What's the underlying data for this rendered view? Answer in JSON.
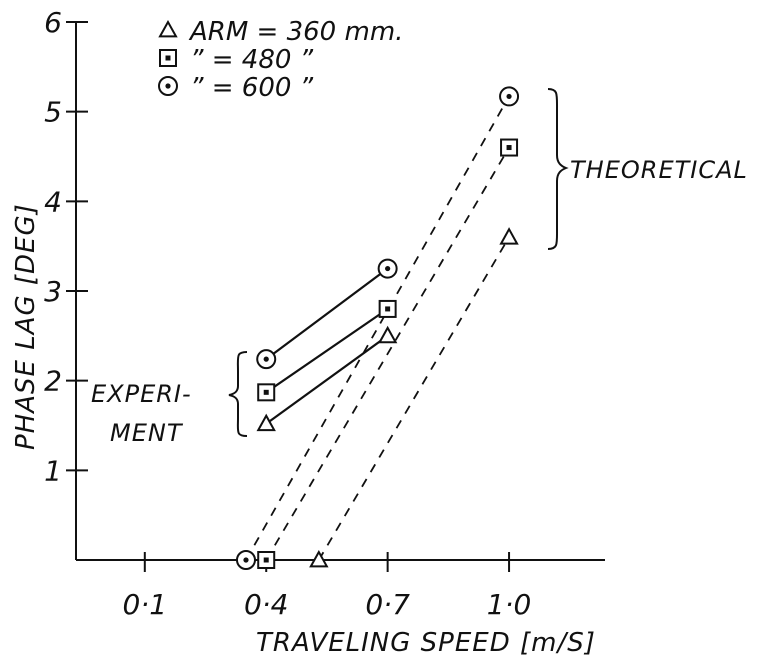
{
  "chart_data": {
    "type": "line",
    "xlabel": "TRAVELING SPEED [m/S]",
    "ylabel": "PHASE LAG [DEG]",
    "x_ticks": [
      {
        "value": 0.1,
        "label": "0·1"
      },
      {
        "value": 0.4,
        "label": "0·4"
      },
      {
        "value": 0.7,
        "label": "0·7"
      },
      {
        "value": 1.0,
        "label": "1·0"
      }
    ],
    "y_ticks": [
      {
        "value": 1,
        "label": "1"
      },
      {
        "value": 2,
        "label": "2"
      },
      {
        "value": 3,
        "label": "3"
      },
      {
        "value": 4,
        "label": "4"
      },
      {
        "value": 5,
        "label": "5"
      },
      {
        "value": 6,
        "label": "6"
      }
    ],
    "xlim": [
      -0.07,
      1.2
    ],
    "ylim": [
      0,
      6
    ],
    "legend": {
      "placement": "top-left",
      "entries": [
        {
          "marker": "triangle",
          "text": "ARM = 360 mm."
        },
        {
          "marker": "square",
          "text": "” = 480 ”"
        },
        {
          "marker": "circle",
          "text": "” = 600 ”"
        }
      ]
    },
    "annotations": {
      "experiment": [
        "EXPERI-",
        "MENT"
      ],
      "theoretical": "THEORETICAL"
    },
    "series": [
      {
        "marker": "triangle",
        "experiment": [
          {
            "x": 0.4,
            "y": 1.52
          },
          {
            "x": 0.7,
            "y": 2.5
          }
        ],
        "theoretical": [
          {
            "x": 0.53,
            "y": 0
          },
          {
            "x": 1.0,
            "y": 3.6
          }
        ]
      },
      {
        "marker": "square",
        "experiment": [
          {
            "x": 0.4,
            "y": 1.87
          },
          {
            "x": 0.7,
            "y": 2.8
          }
        ],
        "theoretical": [
          {
            "x": 0.4,
            "y": 0
          },
          {
            "x": 1.0,
            "y": 4.6
          }
        ]
      },
      {
        "marker": "circle",
        "experiment": [
          {
            "x": 0.4,
            "y": 2.24
          },
          {
            "x": 0.7,
            "y": 3.25
          }
        ],
        "theoretical": [
          {
            "x": 0.35,
            "y": 0
          },
          {
            "x": 1.0,
            "y": 5.17
          }
        ]
      }
    ]
  }
}
